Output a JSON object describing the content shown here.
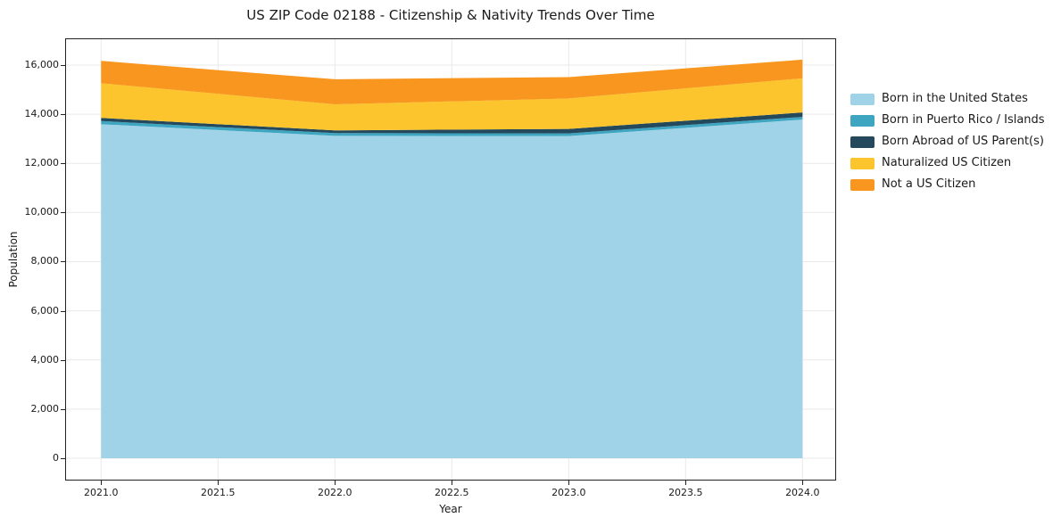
{
  "title": "US ZIP Code 02188 - Citizenship & Nativity Trends Over Time",
  "chart_data": {
    "type": "area",
    "stacked": true,
    "title": "US ZIP Code 02188 - Citizenship & Nativity Trends Over Time",
    "xlabel": "Year",
    "ylabel": "Population",
    "x": [
      2021,
      2022,
      2023,
      2024
    ],
    "series": [
      {
        "name": "Born in the United States",
        "color": "#a1d3e8",
        "values": [
          13590,
          13120,
          13110,
          13780
        ]
      },
      {
        "name": "Born in Puerto Rico / Islands",
        "color": "#3fa6c2",
        "values": [
          130,
          110,
          110,
          110
        ]
      },
      {
        "name": "Born Abroad of US Parent(s)",
        "color": "#24485c",
        "values": [
          130,
          110,
          180,
          180
        ]
      },
      {
        "name": "Naturalized US Citizen",
        "color": "#fcc52d",
        "values": [
          1410,
          1060,
          1240,
          1390
        ]
      },
      {
        "name": "Not a US Citizen",
        "color": "#f8961f",
        "values": [
          910,
          1020,
          870,
          760
        ]
      }
    ],
    "x_ticks": [
      2021.0,
      2021.5,
      2022.0,
      2022.5,
      2023.0,
      2023.5,
      2024.0
    ],
    "x_tick_labels": [
      "2021.0",
      "2021.5",
      "2022.0",
      "2022.5",
      "2023.0",
      "2023.5",
      "2024.0"
    ],
    "y_ticks": [
      0,
      2000,
      4000,
      6000,
      8000,
      10000,
      12000,
      14000,
      16000
    ],
    "y_tick_labels": [
      "0",
      "2,000",
      "4,000",
      "6,000",
      "8,000",
      "10,000",
      "12,000",
      "14,000",
      "16,000"
    ],
    "xlim": [
      2020.85,
      2024.14
    ],
    "ylim": [
      -870,
      17050
    ],
    "grid": true,
    "grid_color": "#e9e9e9",
    "legend_position": "right"
  }
}
